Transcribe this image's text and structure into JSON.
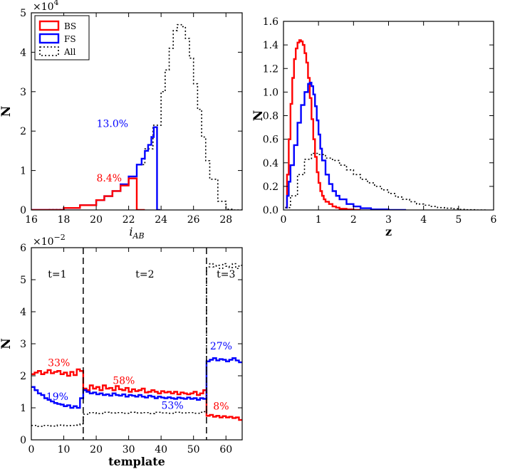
{
  "colors": {
    "BS": "#ff0000",
    "FS": "#0000ff",
    "All": "#000000"
  },
  "chart_data": [
    {
      "type": "histogram-step",
      "id": "magnitude",
      "xlabel_base": "i",
      "xlabel_sub": "AB",
      "ylabel": "N",
      "xlim": [
        16,
        29
      ],
      "ylim": [
        0,
        5
      ],
      "xticks": [
        "16",
        "18",
        "20",
        "22",
        "24",
        "26",
        "28"
      ],
      "yticks": [
        "0",
        "1",
        "2",
        "3",
        "4",
        "5"
      ],
      "scale_base": "×10",
      "scale_exp": "4",
      "legend": {
        "position": "top-left",
        "entries": [
          "BS",
          "FS",
          "All"
        ]
      },
      "annotations": [
        {
          "text": "13.0%",
          "series": "FS",
          "x": 21.0,
          "y": 2.1
        },
        {
          "text": "8.4%",
          "series": "BS",
          "x": 20.8,
          "y": 0.72
        }
      ],
      "series": [
        {
          "name": "All",
          "style": "dotted",
          "x": [
            16,
            17,
            18,
            19,
            20,
            20.5,
            21,
            21.5,
            22,
            22.5,
            23,
            23.5,
            24,
            24.25,
            24.5,
            24.75,
            25,
            25.25,
            25.5,
            25.75,
            26,
            26.25,
            26.5,
            26.75,
            27,
            27.5,
            28,
            28.5
          ],
          "y": [
            0,
            0.01,
            0.05,
            0.12,
            0.25,
            0.35,
            0.48,
            0.65,
            0.85,
            1.15,
            1.55,
            2.15,
            3.0,
            3.55,
            4.1,
            4.55,
            4.7,
            4.65,
            4.35,
            3.85,
            3.2,
            2.55,
            1.85,
            1.25,
            0.78,
            0.22,
            0.02,
            0
          ]
        },
        {
          "name": "FS",
          "style": "solid",
          "x": [
            16,
            18,
            19,
            20,
            20.5,
            21,
            21.5,
            22,
            22.5,
            22.8,
            23,
            23.2,
            23.4,
            23.55,
            23.75
          ],
          "y": [
            0,
            0.05,
            0.12,
            0.25,
            0.35,
            0.48,
            0.65,
            0.85,
            1.15,
            1.3,
            1.5,
            1.65,
            1.85,
            2.1,
            0
          ]
        },
        {
          "name": "BS",
          "style": "solid",
          "x": [
            16,
            18,
            19,
            20,
            20.5,
            21,
            21.5,
            22,
            22.5
          ],
          "y": [
            0,
            0.05,
            0.12,
            0.25,
            0.35,
            0.48,
            0.62,
            0.8,
            0
          ]
        }
      ]
    },
    {
      "type": "histogram-step",
      "id": "redshift",
      "xlabel": "z",
      "ylabel": "N",
      "xlim": [
        0,
        6
      ],
      "ylim": [
        0,
        1.6
      ],
      "xticks": [
        "0",
        "1",
        "2",
        "3",
        "4",
        "5",
        "6"
      ],
      "yticks": [
        "0.0",
        "0.2",
        "0.4",
        "0.6",
        "0.8",
        "1.0",
        "1.2",
        "1.4",
        "1.6"
      ],
      "series": [
        {
          "name": "BS",
          "style": "solid",
          "x": [
            0.05,
            0.1,
            0.15,
            0.2,
            0.25,
            0.3,
            0.35,
            0.4,
            0.45,
            0.5,
            0.55,
            0.6,
            0.65,
            0.7,
            0.75,
            0.8,
            0.85,
            0.9,
            0.95,
            1.0,
            1.05,
            1.1,
            1.15,
            1.2,
            1.3,
            1.4,
            1.5,
            1.6,
            1.8,
            2.0
          ],
          "y": [
            0.02,
            0.3,
            0.6,
            0.9,
            1.12,
            1.28,
            1.37,
            1.42,
            1.44,
            1.43,
            1.4,
            1.33,
            1.25,
            1.12,
            0.95,
            0.77,
            0.6,
            0.45,
            0.32,
            0.23,
            0.16,
            0.12,
            0.09,
            0.07,
            0.05,
            0.03,
            0.02,
            0.01,
            0.005,
            0
          ]
        },
        {
          "name": "FS",
          "style": "solid",
          "x": [
            0.05,
            0.1,
            0.15,
            0.2,
            0.3,
            0.4,
            0.5,
            0.6,
            0.7,
            0.75,
            0.8,
            0.85,
            0.9,
            0.95,
            1.0,
            1.05,
            1.1,
            1.2,
            1.3,
            1.4,
            1.5,
            1.6,
            1.8,
            2.0,
            2.2,
            2.5,
            3.0
          ],
          "y": [
            0.02,
            0.12,
            0.24,
            0.38,
            0.55,
            0.74,
            0.89,
            1.0,
            1.07,
            1.08,
            1.05,
            0.98,
            0.88,
            0.76,
            0.64,
            0.52,
            0.42,
            0.3,
            0.22,
            0.16,
            0.12,
            0.09,
            0.05,
            0.03,
            0.015,
            0.005,
            0
          ]
        },
        {
          "name": "All",
          "style": "dotted",
          "x": [
            0.05,
            0.2,
            0.4,
            0.6,
            0.8,
            1.0,
            1.2,
            1.4,
            1.6,
            1.8,
            2.0,
            2.2,
            2.4,
            2.6,
            2.8,
            3.0,
            3.2,
            3.4,
            3.6,
            3.8,
            4.0,
            4.2,
            4.4,
            4.6,
            4.8,
            5.0,
            5.2,
            5.5
          ],
          "y": [
            0.02,
            0.12,
            0.3,
            0.43,
            0.48,
            0.47,
            0.44,
            0.42,
            0.38,
            0.34,
            0.3,
            0.26,
            0.23,
            0.2,
            0.17,
            0.14,
            0.11,
            0.09,
            0.07,
            0.05,
            0.04,
            0.03,
            0.02,
            0.015,
            0.01,
            0.005,
            0.002,
            0
          ]
        }
      ]
    },
    {
      "type": "step-line",
      "id": "template",
      "xlabel": "template",
      "ylabel": "N",
      "xlim": [
        0,
        65
      ],
      "ylim": [
        0,
        6
      ],
      "xticks": [
        "0",
        "10",
        "20",
        "30",
        "40",
        "50",
        "60"
      ],
      "yticks": [
        "0",
        "1",
        "2",
        "3",
        "4",
        "5",
        "6"
      ],
      "scale_base": "×10",
      "scale_exp": "−2",
      "dividers": [
        16,
        54
      ],
      "regions": [
        {
          "label": "t=1",
          "x": 8
        },
        {
          "label": "t=2",
          "x": 35
        },
        {
          "label": "t=3",
          "x": 60
        }
      ],
      "annotations": [
        {
          "text": "33%",
          "series": "BS",
          "x": 8.5,
          "y": 2.3
        },
        {
          "text": "19%",
          "series": "FS",
          "x": 8,
          "y": 1.25
        },
        {
          "text": "58%",
          "series": "BS",
          "x": 28.5,
          "y": 1.75
        },
        {
          "text": "53%",
          "series": "FS",
          "x": 43.5,
          "y": 0.97
        },
        {
          "text": "27%",
          "series": "FS",
          "x": 58.5,
          "y": 2.82
        },
        {
          "text": "8%",
          "series": "BS",
          "x": 58.5,
          "y": 0.94
        }
      ],
      "series": [
        {
          "name": "BS",
          "style": "solid",
          "x": [
            0,
            1,
            2,
            3,
            4,
            5,
            6,
            7,
            8,
            9,
            10,
            11,
            12,
            13,
            14,
            15,
            16,
            17,
            18,
            19,
            20,
            21,
            22,
            23,
            24,
            25,
            26,
            27,
            28,
            29,
            30,
            31,
            32,
            33,
            34,
            35,
            36,
            37,
            38,
            39,
            40,
            41,
            42,
            43,
            44,
            45,
            46,
            47,
            48,
            49,
            50,
            51,
            52,
            53,
            54,
            55,
            56,
            57,
            58,
            59,
            60,
            61,
            62,
            63,
            64
          ],
          "y": [
            2.05,
            2.1,
            2.15,
            2.05,
            2.1,
            2.18,
            2.08,
            2.12,
            2.15,
            2.05,
            2.1,
            2.0,
            2.12,
            2.02,
            2.2,
            2.15,
            1.6,
            1.55,
            1.7,
            1.6,
            1.65,
            1.55,
            1.7,
            1.6,
            1.62,
            1.55,
            1.68,
            1.58,
            1.55,
            1.62,
            1.5,
            1.58,
            1.52,
            1.55,
            1.6,
            1.48,
            1.5,
            1.55,
            1.5,
            1.45,
            1.52,
            1.48,
            1.5,
            1.45,
            1.5,
            1.42,
            1.48,
            1.45,
            1.42,
            1.45,
            1.5,
            1.4,
            1.45,
            1.55,
            0.75,
            0.78,
            0.72,
            0.75,
            0.7,
            0.74,
            0.7,
            0.72,
            0.68,
            0.7,
            0.62
          ]
        },
        {
          "name": "FS",
          "style": "solid",
          "x": [
            0,
            1,
            2,
            3,
            4,
            5,
            6,
            7,
            8,
            9,
            10,
            11,
            12,
            13,
            14,
            15,
            16,
            17,
            18,
            19,
            20,
            21,
            22,
            23,
            24,
            25,
            26,
            27,
            28,
            29,
            30,
            31,
            32,
            33,
            34,
            35,
            36,
            37,
            38,
            39,
            40,
            41,
            42,
            43,
            44,
            45,
            46,
            47,
            48,
            49,
            50,
            51,
            52,
            53,
            54,
            55,
            56,
            57,
            58,
            59,
            60,
            61,
            62,
            63,
            64
          ],
          "y": [
            1.65,
            1.55,
            1.45,
            1.4,
            1.3,
            1.25,
            1.2,
            1.15,
            1.12,
            1.1,
            1.05,
            1.08,
            1.0,
            1.05,
            1.0,
            1.3,
            1.55,
            1.5,
            1.45,
            1.48,
            1.42,
            1.45,
            1.4,
            1.42,
            1.38,
            1.45,
            1.4,
            1.38,
            1.42,
            1.35,
            1.4,
            1.38,
            1.35,
            1.4,
            1.35,
            1.32,
            1.38,
            1.35,
            1.3,
            1.35,
            1.32,
            1.3,
            1.33,
            1.3,
            1.28,
            1.32,
            1.3,
            1.28,
            1.32,
            1.28,
            1.3,
            1.25,
            1.3,
            1.28,
            2.45,
            2.5,
            2.55,
            2.48,
            2.52,
            2.5,
            2.45,
            2.5,
            2.55,
            2.48,
            2.42
          ]
        },
        {
          "name": "All",
          "style": "dotted",
          "x": [
            0,
            2,
            4,
            6,
            8,
            10,
            12,
            14,
            15,
            16,
            18,
            20,
            22,
            24,
            26,
            28,
            30,
            32,
            34,
            36,
            38,
            40,
            42,
            44,
            46,
            48,
            50,
            52,
            53,
            54,
            55,
            56,
            57,
            58,
            59,
            60,
            61,
            62,
            63,
            64
          ],
          "y": [
            0.45,
            0.42,
            0.45,
            0.43,
            0.46,
            0.44,
            0.45,
            0.46,
            0.5,
            0.8,
            0.85,
            0.82,
            0.86,
            0.84,
            0.85,
            0.83,
            0.86,
            0.84,
            0.85,
            0.82,
            0.86,
            0.84,
            0.83,
            0.86,
            0.84,
            0.85,
            0.83,
            0.86,
            0.88,
            5.4,
            5.5,
            5.4,
            5.45,
            5.35,
            5.5,
            5.42,
            5.38,
            5.5,
            5.35,
            5.45
          ]
        }
      ]
    }
  ]
}
